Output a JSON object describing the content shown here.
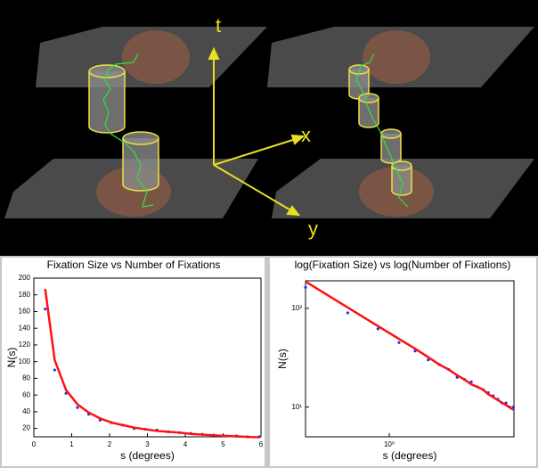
{
  "illustration": {
    "axis_labels": [
      "t",
      "x",
      "y"
    ]
  },
  "chart_data": [
    {
      "type": "line",
      "title": "Fixation Size vs Number of Fixations",
      "xlabel": "s (degrees)",
      "ylabel": "N(s)",
      "xscale": "linear",
      "yscale": "linear",
      "xlim": [
        0,
        6
      ],
      "ylim": [
        10,
        200
      ],
      "xticks": [
        0,
        1,
        2,
        3,
        4,
        5,
        6
      ],
      "yticks": [
        20,
        40,
        60,
        80,
        100,
        120,
        140,
        160,
        180,
        200
      ],
      "x": [
        0.3,
        0.55,
        0.85,
        1.15,
        1.45,
        1.75,
        2.05,
        2.35,
        2.65,
        2.95,
        3.25,
        3.55,
        3.85,
        4.15,
        4.45,
        4.75,
        5.05,
        5.35,
        5.65,
        5.95
      ],
      "series": [
        {
          "color": "#2030ff",
          "mode": "markers",
          "values": [
            163,
            90,
            62,
            45,
            37,
            30,
            27,
            24,
            20,
            19,
            18,
            16,
            15,
            14,
            13,
            12,
            11,
            11,
            10,
            10
          ]
        },
        {
          "color": "#ff1010",
          "mode": "line",
          "values": [
            187,
            102,
            66,
            49,
            39,
            32,
            27,
            24,
            21,
            19,
            17,
            16,
            15,
            13.5,
            12.6,
            11.8,
            11.1,
            10.5,
            9.9,
            9.4
          ]
        }
      ]
    },
    {
      "type": "line",
      "title": "log(Fixation Size) vs log(Number of Fixations)",
      "xlabel": "s (degrees)",
      "ylabel": "N(s)",
      "xscale": "log",
      "yscale": "log",
      "xlim": [
        0.3,
        6
      ],
      "ylim": [
        5,
        190
      ],
      "xticks": [
        {
          "value": 1,
          "label": "10⁰"
        }
      ],
      "yticks": [
        {
          "value": 10,
          "label": "10¹"
        },
        {
          "value": 100,
          "label": "10²"
        }
      ],
      "x": [
        0.3,
        0.55,
        0.85,
        1.15,
        1.45,
        1.75,
        2.05,
        2.35,
        2.65,
        2.95,
        3.25,
        3.55,
        3.85,
        4.15,
        4.45,
        4.75,
        5.05,
        5.35,
        5.65,
        5.95
      ],
      "series": [
        {
          "color": "#2030ff",
          "mode": "markers",
          "values": [
            163,
            90,
            62,
            45,
            37,
            30,
            27,
            24,
            20,
            19,
            18,
            16,
            15,
            14,
            13,
            12,
            11,
            11,
            10,
            10
          ]
        },
        {
          "color": "#ff1010",
          "mode": "line",
          "values": [
            187,
            102,
            66,
            49,
            39,
            32,
            27,
            24,
            21,
            19,
            17,
            16,
            15,
            13.5,
            12.6,
            11.8,
            11.1,
            10.5,
            9.9,
            9.4
          ]
        }
      ]
    }
  ]
}
